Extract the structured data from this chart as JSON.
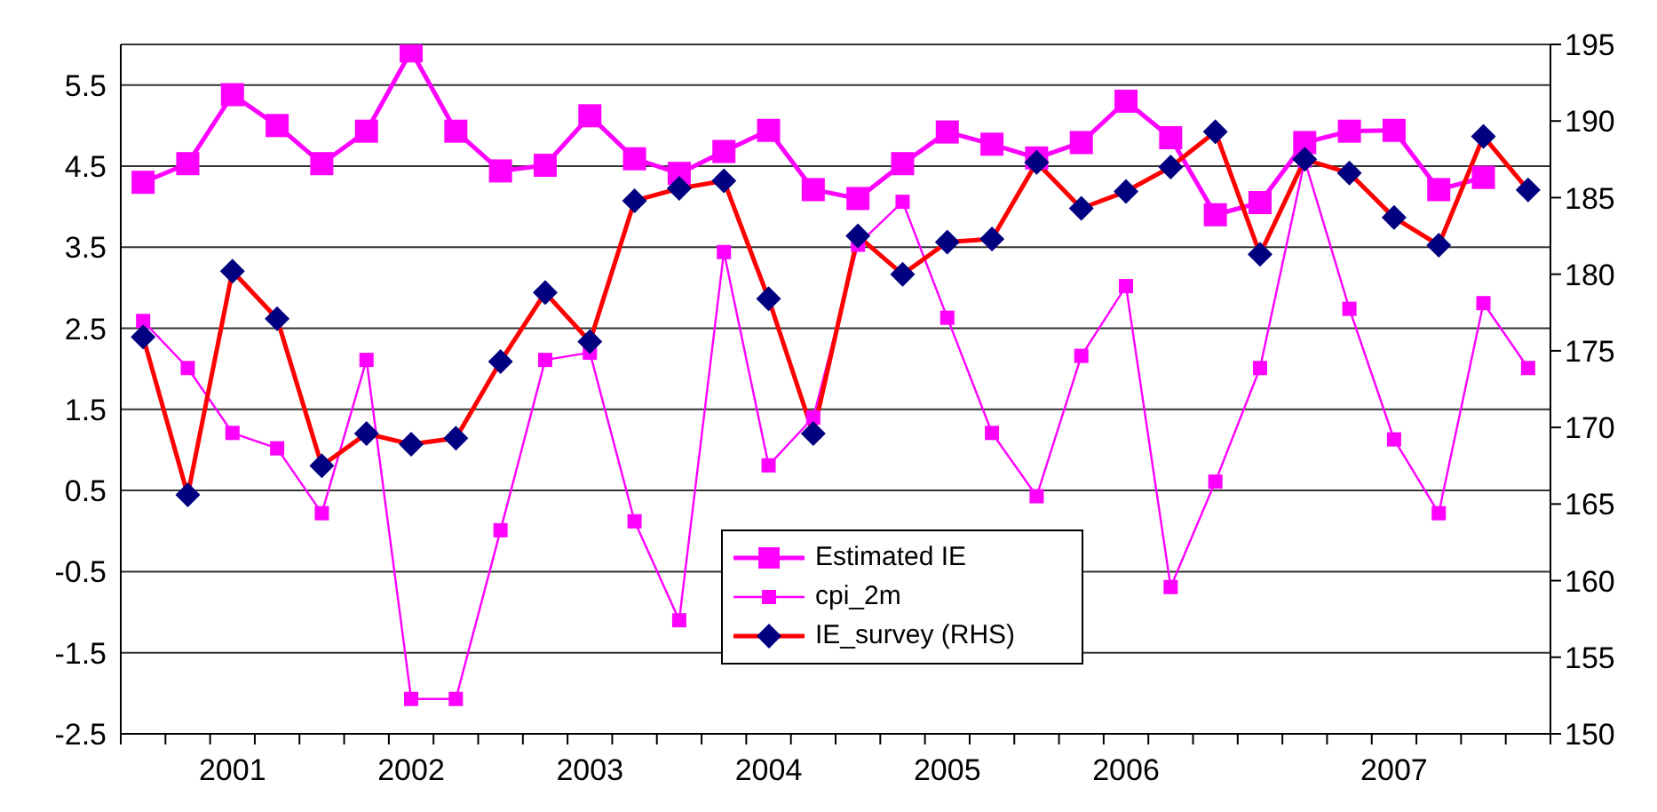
{
  "chart_data": {
    "type": "line",
    "categories": [
      null,
      null,
      "2001",
      null,
      null,
      null,
      "2002",
      null,
      null,
      null,
      "2003",
      null,
      null,
      null,
      "2004",
      null,
      null,
      null,
      "2005",
      null,
      null,
      null,
      "2006",
      null,
      null,
      null,
      null,
      null,
      "2007",
      null,
      null,
      null
    ],
    "series": [
      {
        "name": "Estimated IE",
        "color": "#ff00ff",
        "marker": "square",
        "values": [
          4.3,
          4.53,
          5.38,
          5.0,
          4.53,
          4.93,
          5.92,
          4.93,
          4.44,
          4.51,
          5.12,
          4.59,
          4.41,
          4.68,
          4.94,
          4.21,
          4.1,
          4.53,
          4.92,
          4.77,
          4.6,
          4.79,
          5.3,
          4.85,
          3.9,
          4.05,
          4.79,
          4.93,
          4.94,
          4.21,
          4.36,
          null
        ]
      },
      {
        "name": "cpi_2m",
        "color": "#ff00ff",
        "marker": "square",
        "values": [
          2.59,
          2.01,
          1.21,
          1.02,
          0.22,
          2.11,
          -2.07,
          -2.07,
          0.01,
          2.11,
          2.2,
          0.12,
          -1.1,
          3.44,
          0.81,
          1.4,
          3.53,
          4.06,
          2.63,
          1.21,
          0.43,
          2.16,
          3.02,
          -0.69,
          0.61,
          2.01,
          4.57,
          2.74,
          1.13,
          0.22,
          2.81,
          2.01
        ]
      },
      {
        "name": "IE_survey (RHS)",
        "color": "#ff0000",
        "marker": "diamond",
        "axis": "y2",
        "values": [
          175.9,
          165.6,
          180.2,
          177.1,
          167.5,
          169.6,
          168.9,
          169.3,
          174.3,
          178.8,
          175.6,
          184.8,
          185.6,
          186.1,
          178.4,
          169.6,
          182.5,
          180.0,
          182.1,
          182.3,
          187.3,
          184.3,
          185.4,
          187.0,
          189.3,
          181.3,
          187.5,
          186.6,
          183.7,
          181.9,
          189.0,
          185.5
        ]
      }
    ],
    "ylim": [
      -2.5,
      6.0
    ],
    "yticks": [
      -2.5,
      -1.5,
      -0.5,
      0.5,
      1.5,
      2.5,
      3.5,
      4.5,
      5.5
    ],
    "y2lim": [
      150,
      195
    ],
    "y2ticks": [
      150,
      155,
      160,
      165,
      170,
      175,
      180,
      185,
      190,
      195
    ],
    "grid": "y",
    "legend": "bottom"
  }
}
